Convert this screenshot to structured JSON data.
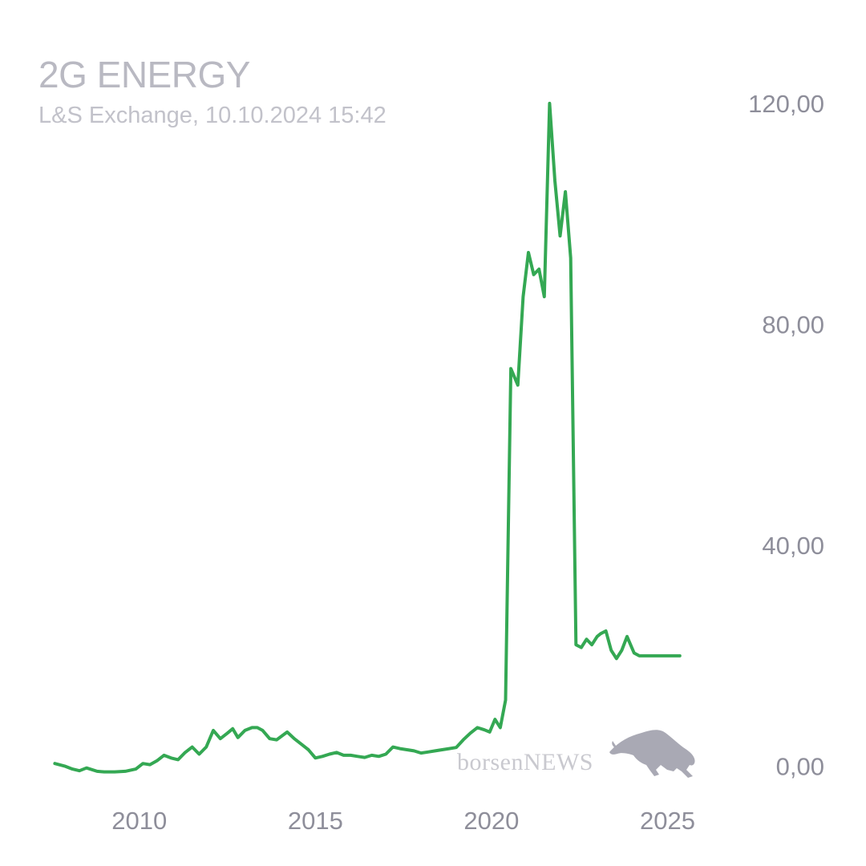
{
  "header": {
    "title": "2G ENERGY",
    "subtitle": "L&S Exchange, 10.10.2024 15:42"
  },
  "watermark": {
    "text_lower": "borsen",
    "text_upper": "NEWS",
    "icon": "bull-icon"
  },
  "colors": {
    "line": "#34a853",
    "title": "#b9b9c2",
    "ticks": "#8e8e9a",
    "watermark": "#a9a9b4"
  },
  "chart_data": {
    "type": "line",
    "title": "2G ENERGY",
    "subtitle": "L&S Exchange, 10.10.2024 15:42",
    "xlabel": "",
    "ylabel": "",
    "xlim": [
      2007.5,
      2025.9
    ],
    "ylim": [
      -1.5,
      121
    ],
    "yticks": [
      0,
      40,
      80,
      120
    ],
    "ytick_labels": [
      "0,00",
      "40,00",
      "80,00",
      "120,00"
    ],
    "xticks": [
      2010,
      2015,
      2020,
      2025
    ],
    "xtick_labels": [
      "2010",
      "2015",
      "2020",
      "2025"
    ],
    "grid": false,
    "y_axis_side": "right",
    "series": [
      {
        "x": [
          2007.6,
          2007.9,
          2008.1,
          2008.3,
          2008.5,
          2008.8,
          2009.0,
          2009.3,
          2009.6,
          2009.9,
          2010.1,
          2010.3,
          2010.5,
          2010.7,
          2010.9,
          2011.1,
          2011.3,
          2011.5,
          2011.7,
          2011.9,
          2012.1,
          2012.3,
          2012.5,
          2012.65,
          2012.8,
          2013.0,
          2013.2,
          2013.35,
          2013.5,
          2013.7,
          2013.9,
          2014.05,
          2014.2,
          2014.4,
          2014.6,
          2014.8,
          2015.0,
          2015.2,
          2015.4,
          2015.6,
          2015.8,
          2016.0,
          2016.2,
          2016.4,
          2016.6,
          2016.8,
          2017.0,
          2017.2,
          2017.4,
          2017.6,
          2017.8,
          2018.0,
          2018.2,
          2018.4,
          2018.6,
          2018.8,
          2019.0,
          2019.2,
          2019.4,
          2019.6,
          2019.8,
          2019.95,
          2020.1,
          2020.25,
          2020.4,
          2020.55,
          2020.75,
          2020.9,
          2021.05,
          2021.2,
          2021.35,
          2021.5,
          2021.65,
          2021.8,
          2021.95,
          2022.1,
          2022.25,
          2022.4,
          2022.55,
          2022.7,
          2022.85,
          2023.0,
          2023.1,
          2023.25,
          2023.4,
          2023.55,
          2023.7,
          2023.85,
          2024.05,
          2024.2,
          2024.4,
          2024.6,
          2024.8,
          2024.95,
          2025.15,
          2025.35
        ],
        "y": [
          0.5,
          0,
          -0.5,
          -0.8,
          -0.3,
          -0.9,
          -1.0,
          -1.0,
          -0.9,
          -0.5,
          0.5,
          0.3,
          1.0,
          2.0,
          1.5,
          1.2,
          2.5,
          3.5,
          2.2,
          3.5,
          6.5,
          5.0,
          6.0,
          6.8,
          5.2,
          6.5,
          7.0,
          7.0,
          6.5,
          5.0,
          4.8,
          5.5,
          6.2,
          5.0,
          4.0,
          3.0,
          1.5,
          1.8,
          2.2,
          2.5,
          2.0,
          2.0,
          1.8,
          1.6,
          2.0,
          1.8,
          2.2,
          3.5,
          3.2,
          3.0,
          2.8,
          2.4,
          2.6,
          2.8,
          3.0,
          3.2,
          3.4,
          4.8,
          6.0,
          7.0,
          6.6,
          6.2,
          8.5,
          7.0,
          12.0,
          72.0,
          69.0,
          85.0,
          93.0,
          89.0,
          90.0,
          85.0,
          120.0,
          106.0,
          96.0,
          104.0,
          92.0,
          22.0,
          21.5,
          23.0,
          22.0,
          23.5,
          24.0,
          24.5,
          21.0,
          19.5,
          21.0,
          23.5,
          20.5,
          20.0,
          20.0,
          20.0,
          20.0,
          20.0,
          20.0,
          20.0
        ]
      }
    ]
  }
}
